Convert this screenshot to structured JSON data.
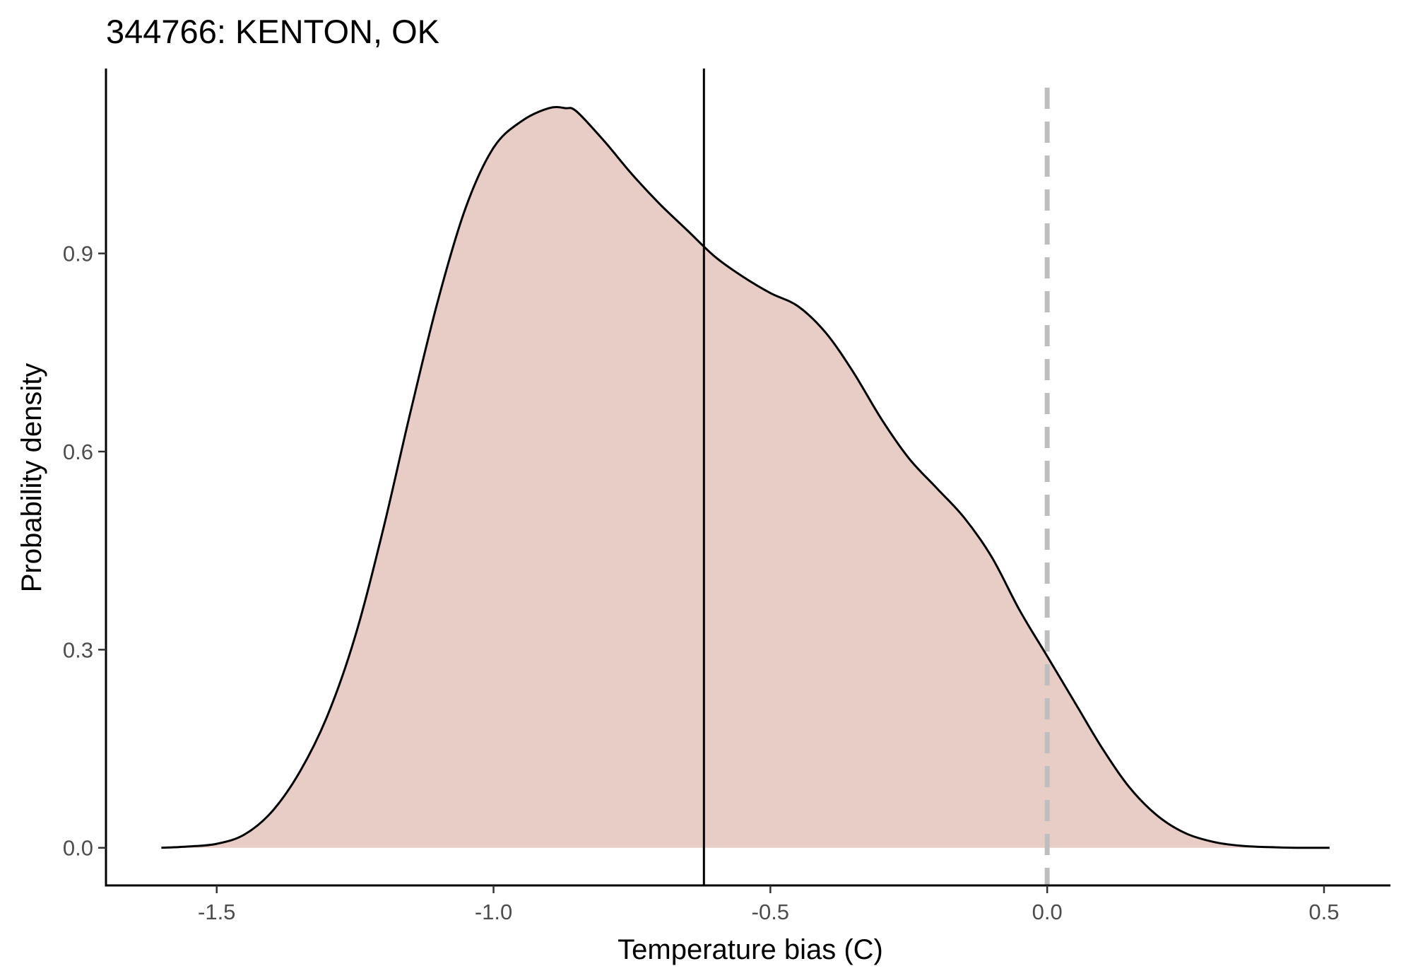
{
  "chart_data": {
    "type": "area",
    "title": "344766: KENTON, OK",
    "xlabel": "Temperature bias (C)",
    "ylabel": "Probability density",
    "xlim": [
      -1.7,
      0.62
    ],
    "ylim": [
      -0.057,
      1.18
    ],
    "x_ticks": [
      -1.5,
      -1.0,
      -0.5,
      0.0,
      0.5
    ],
    "x_tick_labels": [
      "-1.5",
      "-1.0",
      "-0.5",
      "0.0",
      "0.5"
    ],
    "y_ticks": [
      0.0,
      0.3,
      0.6,
      0.9
    ],
    "y_tick_labels": [
      "0.0",
      "0.3",
      "0.6",
      "0.9"
    ],
    "grid": false,
    "fill_color": "#e8cdc6",
    "line_color": "#000000",
    "reference_lines": [
      {
        "x": -0.62,
        "style": "solid",
        "color": "#000000"
      },
      {
        "x": 0.0,
        "style": "dashed",
        "color": "#bebebe"
      }
    ],
    "series": [
      {
        "x": [
          -1.6,
          -1.55,
          -1.5,
          -1.45,
          -1.4,
          -1.35,
          -1.3,
          -1.25,
          -1.2,
          -1.15,
          -1.1,
          -1.05,
          -1.0,
          -0.95,
          -0.9,
          -0.87,
          -0.85,
          -0.8,
          -0.75,
          -0.7,
          -0.65,
          -0.6,
          -0.55,
          -0.5,
          -0.45,
          -0.4,
          -0.35,
          -0.3,
          -0.25,
          -0.2,
          -0.15,
          -0.1,
          -0.05,
          0.0,
          0.05,
          0.1,
          0.15,
          0.2,
          0.25,
          0.3,
          0.35,
          0.4,
          0.45,
          0.51
        ],
        "y": [
          0.0,
          0.002,
          0.006,
          0.02,
          0.055,
          0.115,
          0.2,
          0.32,
          0.48,
          0.66,
          0.83,
          0.97,
          1.06,
          1.1,
          1.12,
          1.12,
          1.115,
          1.07,
          1.02,
          0.975,
          0.935,
          0.895,
          0.865,
          0.84,
          0.82,
          0.78,
          0.72,
          0.65,
          0.59,
          0.545,
          0.5,
          0.44,
          0.36,
          0.29,
          0.22,
          0.15,
          0.09,
          0.048,
          0.022,
          0.009,
          0.003,
          0.001,
          0.0,
          0.0
        ]
      }
    ]
  }
}
